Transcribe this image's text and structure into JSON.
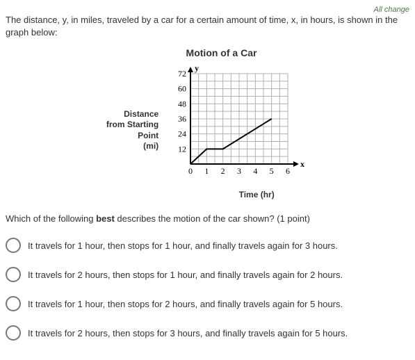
{
  "top_link": "All change",
  "question_intro": "The distance, y, in miles, traveled by a car for a certain amount of time, x, in hours, is shown in the graph below:",
  "chart": {
    "type": "line",
    "title": "Motion of a Car",
    "y_axis_var": "y",
    "x_axis_var": "x",
    "y_label_line1": "Distance",
    "y_label_line2": "from Starting",
    "y_label_line3": "Point",
    "y_label_line4": "(mi)",
    "x_label": "Time (hr)",
    "y_ticks": [
      0,
      12,
      24,
      36,
      48,
      60,
      72
    ],
    "x_ticks": [
      0,
      1,
      2,
      3,
      4,
      5,
      6
    ],
    "xlim": [
      0,
      6
    ],
    "ylim": [
      0,
      72
    ],
    "grid_color": "#b0b0b0",
    "axis_color": "#000000",
    "line_color": "#000000",
    "background_color": "#ffffff",
    "line_width": 2,
    "grid_step_x": 0.5,
    "grid_step_y": 6,
    "data_points": [
      {
        "x": 0,
        "y": 0
      },
      {
        "x": 1,
        "y": 12
      },
      {
        "x": 2,
        "y": 12
      },
      {
        "x": 5,
        "y": 36
      }
    ],
    "tick_fontsize": 12,
    "label_fontsize": 12,
    "title_fontsize": 14
  },
  "prompt_pre": "Which of the following ",
  "prompt_bold": "best",
  "prompt_post": " describes the motion of the car shown? (1 point)",
  "answers": [
    "It travels for 1 hour, then stops for 1 hour, and finally travels again for 3 hours.",
    "It travels for 2 hours, then stops for 1 hour, and finally travels again for 2 hours.",
    "It travels for 1 hour, then stops for 2 hours, and finally travels again for 5 hours.",
    "It travels for 2 hours, then stops for 3 hours, and finally travels again for 5 hours."
  ]
}
